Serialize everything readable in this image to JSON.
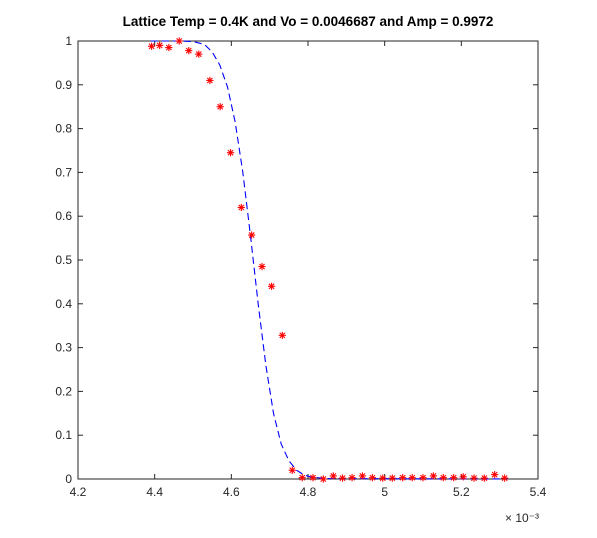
{
  "chart_data": {
    "type": "scatter",
    "title": "Lattice Temp = 0.4K and Vo = 0.0046687 and Amp = 0.9972",
    "xlabel": "",
    "ylabel": "",
    "x_exponent_label": "× 10⁻³",
    "xlim": [
      4.2,
      5.4
    ],
    "ylim": [
      0,
      1
    ],
    "xticks": [
      "4.2",
      "4.4",
      "4.6",
      "4.8",
      "5",
      "5.2",
      "5.4"
    ],
    "yticks": [
      "0",
      "0.1",
      "0.2",
      "0.3",
      "0.4",
      "0.5",
      "0.6",
      "0.7",
      "0.8",
      "0.9",
      "1"
    ],
    "grid": false,
    "series": [
      {
        "style": "markers",
        "marker": "asterisk",
        "color": "#ff0000",
        "points": [
          [
            4.392,
            0.988
          ],
          [
            4.413,
            0.99
          ],
          [
            4.437,
            0.985
          ],
          [
            4.464,
            1.0
          ],
          [
            4.489,
            0.978
          ],
          [
            4.515,
            0.97
          ],
          [
            4.544,
            0.91
          ],
          [
            4.571,
            0.85
          ],
          [
            4.598,
            0.745
          ],
          [
            4.626,
            0.62
          ],
          [
            4.653,
            0.557
          ],
          [
            4.68,
            0.485
          ],
          [
            4.705,
            0.44
          ],
          [
            4.733,
            0.328
          ],
          [
            4.759,
            0.02
          ],
          [
            4.785,
            0.003
          ],
          [
            4.813,
            0.003
          ],
          [
            4.84,
            0.0
          ],
          [
            4.866,
            0.007
          ],
          [
            4.89,
            0.002
          ],
          [
            4.915,
            0.003
          ],
          [
            4.942,
            0.007
          ],
          [
            4.968,
            0.003
          ],
          [
            4.995,
            0.002
          ],
          [
            5.02,
            0.002
          ],
          [
            5.047,
            0.003
          ],
          [
            5.072,
            0.003
          ],
          [
            5.1,
            0.003
          ],
          [
            5.127,
            0.007
          ],
          [
            5.153,
            0.003
          ],
          [
            5.18,
            0.003
          ],
          [
            5.205,
            0.005
          ],
          [
            5.233,
            0.002
          ],
          [
            5.26,
            0.002
          ],
          [
            5.287,
            0.01
          ],
          [
            5.313,
            0.002
          ]
        ]
      },
      {
        "style": "dashed-line",
        "color": "#0000ff",
        "points": [
          [
            4.39,
            1.0
          ],
          [
            4.45,
            1.0
          ],
          [
            4.5,
            0.999
          ],
          [
            4.53,
            0.992
          ],
          [
            4.55,
            0.975
          ],
          [
            4.57,
            0.945
          ],
          [
            4.59,
            0.895
          ],
          [
            4.61,
            0.815
          ],
          [
            4.63,
            0.7
          ],
          [
            4.65,
            0.555
          ],
          [
            4.67,
            0.4
          ],
          [
            4.69,
            0.26
          ],
          [
            4.71,
            0.15
          ],
          [
            4.73,
            0.08
          ],
          [
            4.75,
            0.042
          ],
          [
            4.77,
            0.02
          ],
          [
            4.79,
            0.009
          ],
          [
            4.81,
            0.004
          ],
          [
            4.85,
            0.001
          ],
          [
            5.32,
            0.0
          ]
        ]
      }
    ]
  }
}
